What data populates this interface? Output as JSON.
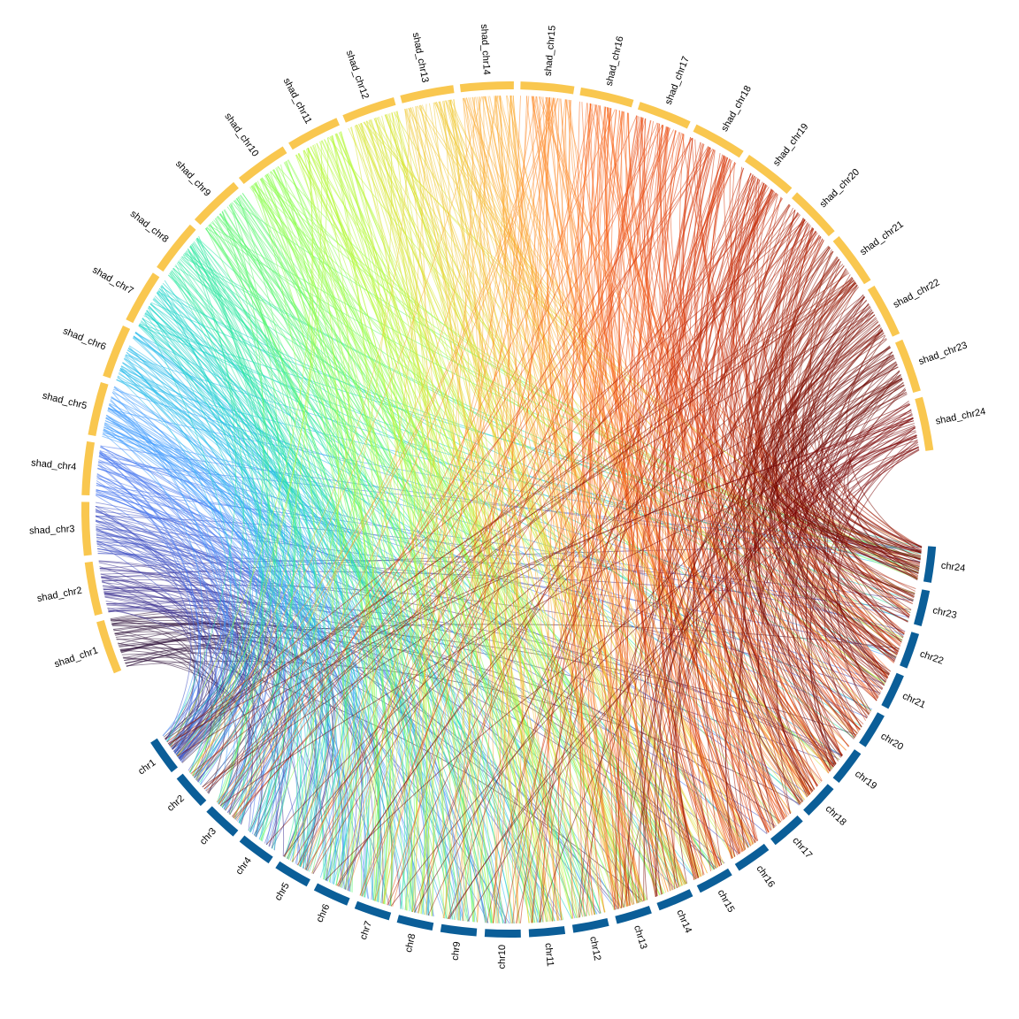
{
  "diagram": {
    "type": "circos-synteny",
    "colors": {
      "top_track": "#f9c74f",
      "bottom_track": "#0b5e98",
      "background": "#ffffff"
    },
    "top_group": {
      "label_visibility": "partially clipped for shad_chr1 to shad_chr12",
      "segments": [
        {
          "name": "shad_chr1",
          "label": "shad_chr1",
          "display": "shad_chr1"
        },
        {
          "name": "shad_chr2",
          "label": "shad_chr2",
          "display": "shad_chr2"
        },
        {
          "name": "shad_chr3",
          "label": "shad_chr3",
          "display": "shad_chr3"
        },
        {
          "name": "shad_chr4",
          "label": "shad_chr4",
          "display": "shad_chr4"
        },
        {
          "name": "shad_chr5",
          "label": "shad_chr5",
          "display": "shad_chr5"
        },
        {
          "name": "shad_chr6",
          "label": "shad_chr6",
          "display": "shad_chr6"
        },
        {
          "name": "shad_chr7",
          "label": "shad_chr7",
          "display": "shad_chr7"
        },
        {
          "name": "shad_chr8",
          "label": "shad_chr8",
          "display": "shad_chr8"
        },
        {
          "name": "shad_chr9",
          "label": "shad_chr9",
          "display": "shad_chr9"
        },
        {
          "name": "shad_chr10",
          "label": "shad_chr10",
          "display": "shad_chr10"
        },
        {
          "name": "shad_chr11",
          "label": "shad_chr11",
          "display": "shad_chr11"
        },
        {
          "name": "shad_chr12",
          "label": "shad_chr12",
          "display": "shad_chr12"
        },
        {
          "name": "shad_chr13",
          "label": "shad_chr13",
          "display": "shad_chr13"
        },
        {
          "name": "shad_chr14",
          "label": "shad_chr14",
          "display": "shad_chr14"
        },
        {
          "name": "shad_chr15",
          "label": "shad_chr15",
          "display": "shad_chr15"
        },
        {
          "name": "shad_chr16",
          "label": "shad_chr16",
          "display": "shad_chr16"
        },
        {
          "name": "shad_chr17",
          "label": "shad_chr17",
          "display": "shad_chr17"
        },
        {
          "name": "shad_chr18",
          "label": "shad_chr18",
          "display": "shad_chr18"
        },
        {
          "name": "shad_chr19",
          "label": "shad_chr19",
          "display": "shad_chr19"
        },
        {
          "name": "shad_chr20",
          "label": "shad_chr20",
          "display": "shad_chr20"
        },
        {
          "name": "shad_chr21",
          "label": "shad_chr21",
          "display": "shad_chr21"
        },
        {
          "name": "shad_chr22",
          "label": "shad_chr22",
          "display": "shad_chr22"
        },
        {
          "name": "shad_chr23",
          "label": "shad_chr23",
          "display": "shad_chr23"
        },
        {
          "name": "shad_chr24",
          "label": "shad_chr24",
          "display": "shad_chr24"
        }
      ]
    },
    "bottom_group": {
      "segments": [
        {
          "name": "chr1",
          "label": "chr1"
        },
        {
          "name": "chr2",
          "label": "chr2"
        },
        {
          "name": "chr3",
          "label": "chr3"
        },
        {
          "name": "chr4",
          "label": "chr4"
        },
        {
          "name": "chr5",
          "label": "chr5"
        },
        {
          "name": "chr6",
          "label": "chr6"
        },
        {
          "name": "chr7",
          "label": "chr7"
        },
        {
          "name": "chr8",
          "label": "chr8"
        },
        {
          "name": "chr9",
          "label": "chr9"
        },
        {
          "name": "chr10",
          "label": "chr10"
        },
        {
          "name": "chr11",
          "label": "chr11"
        },
        {
          "name": "chr12",
          "label": "chr12"
        },
        {
          "name": "chr13",
          "label": "chr13"
        },
        {
          "name": "chr14",
          "label": "chr14"
        },
        {
          "name": "chr15",
          "label": "chr15"
        },
        {
          "name": "chr16",
          "label": "chr16"
        },
        {
          "name": "chr17",
          "label": "chr17"
        },
        {
          "name": "chr18",
          "label": "chr18"
        },
        {
          "name": "chr19",
          "label": "chr19"
        },
        {
          "name": "chr20",
          "label": "chr20"
        },
        {
          "name": "chr21",
          "label": "chr21"
        },
        {
          "name": "chr22",
          "label": "chr22"
        },
        {
          "name": "chr23",
          "label": "chr23"
        },
        {
          "name": "chr24",
          "label": "chr24"
        }
      ]
    },
    "link_palette": [
      "#30123b",
      "#3b2f8f",
      "#4454c4",
      "#4777ef",
      "#3e9bfe",
      "#28bceb",
      "#1ad4c9",
      "#2ae89e",
      "#58f66d",
      "#8cfe4e",
      "#b5f836",
      "#d7e535",
      "#f0ca3a",
      "#fcad36",
      "#fe8a2a",
      "#f8661c",
      "#ea4d12",
      "#d93a0c",
      "#c42a05",
      "#ad1e02",
      "#941500",
      "#7e0d01",
      "#6d0702",
      "#7a0403"
    ]
  }
}
